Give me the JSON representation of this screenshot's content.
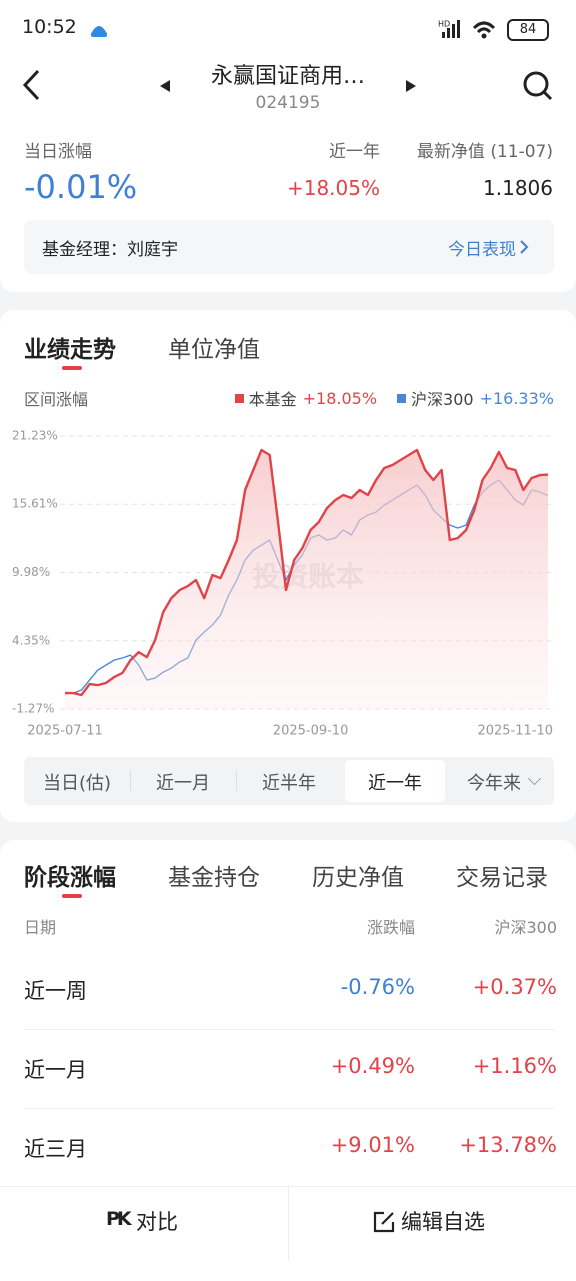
{
  "status_bar": {
    "time": "10:52",
    "battery": "84"
  },
  "header": {
    "title": "永赢国证商用…",
    "code": "024195"
  },
  "summary": {
    "daily_label": "当日涨幅",
    "daily_value": "-0.01%",
    "year_label": "近一年",
    "year_value": "+18.05%",
    "nav_label": "最新净值 (11-07)",
    "nav_value": "1.1806"
  },
  "manager": {
    "label": "基金经理：刘庭宇",
    "link": "今日表现"
  },
  "chart_tabs": [
    "业绩走势",
    "单位净值"
  ],
  "chart": {
    "type": "line",
    "subtitle": "区间涨幅",
    "watermark": "投资账本",
    "series": [
      {
        "name": "本基金",
        "legend_value": "+18.05%",
        "color": "#e24349",
        "values": [
          0.04,
          0.04,
          -0.12,
          0.78,
          0.7,
          0.87,
          1.36,
          1.69,
          2.76,
          3.42,
          3.01,
          4.41,
          6.72,
          7.87,
          8.53,
          8.86,
          9.36,
          7.87,
          9.77,
          9.52,
          11.01,
          12.66,
          16.78,
          18.43,
          20.08,
          19.66,
          14.31,
          8.53,
          11.01,
          12.0,
          13.48,
          14.14,
          15.29,
          15.95,
          16.37,
          16.12,
          16.78,
          16.37,
          17.6,
          18.59,
          18.84,
          19.25,
          19.66,
          20.08,
          18.43,
          17.6,
          18.43,
          12.66,
          12.82,
          13.48,
          15.13,
          17.6,
          18.59,
          19.91,
          18.59,
          18.43,
          16.78,
          17.77,
          18.01,
          18.05
        ]
      },
      {
        "name": "沪深300",
        "legend_value": "+16.33%",
        "color": "#4a86d8",
        "values": [
          0.04,
          0.04,
          0.29,
          1.11,
          1.94,
          2.35,
          2.76,
          2.93,
          3.17,
          2.35,
          1.11,
          1.28,
          1.77,
          2.1,
          2.6,
          2.93,
          4.41,
          5.07,
          5.65,
          6.47,
          8.12,
          9.36,
          11.01,
          11.83,
          12.24,
          12.66,
          11.01,
          9.36,
          10.6,
          11.42,
          12.82,
          13.07,
          12.66,
          12.82,
          13.48,
          13.07,
          14.31,
          14.72,
          14.96,
          15.54,
          15.95,
          16.37,
          16.78,
          17.19,
          16.37,
          15.13,
          14.47,
          13.89,
          13.65,
          13.89,
          15.54,
          16.61,
          17.19,
          17.6,
          16.78,
          15.95,
          15.54,
          16.78,
          16.61,
          16.33
        ]
      }
    ],
    "categories": [
      "2025-07-11",
      null,
      null,
      null,
      null,
      null,
      null,
      null,
      null,
      null,
      null,
      null,
      null,
      null,
      null,
      null,
      null,
      null,
      null,
      null,
      null,
      null,
      null,
      null,
      null,
      null,
      null,
      null,
      null,
      null,
      "2025-09-10",
      null,
      null,
      null,
      null,
      null,
      null,
      null,
      null,
      null,
      null,
      null,
      null,
      null,
      null,
      null,
      null,
      null,
      null,
      null,
      null,
      null,
      null,
      null,
      null,
      "2025-11-10",
      null,
      null,
      null,
      null
    ],
    "ylim": [
      -1.27,
      21.23
    ],
    "yticks": [
      {
        "value": 21.23,
        "label": "21.23%"
      },
      {
        "value": 15.61,
        "label": "15.61%"
      },
      {
        "value": 9.98,
        "label": "9.98%"
      },
      {
        "value": 4.35,
        "label": "4.35%"
      },
      {
        "value": -1.27,
        "label": "-1.27%"
      }
    ],
    "grid": true
  },
  "ranges": [
    "当日(估)",
    "近一月",
    "近半年",
    "近一年",
    "今年来"
  ],
  "active_range": 3,
  "tabs": [
    "阶段涨幅",
    "基金持仓",
    "历史净值",
    "交易记录"
  ],
  "table": {
    "header": [
      "日期",
      "涨跌幅",
      "沪深300"
    ],
    "rows": [
      [
        "近一周",
        "-0.76%",
        "+0.37%"
      ],
      [
        "近一月",
        "+0.49%",
        "+1.16%"
      ],
      [
        "近三月",
        "+9.01%",
        "+13.78%"
      ]
    ]
  },
  "bottom_bar": {
    "pk_icon": "PK",
    "compare": "对比",
    "edit": "编辑自选"
  }
}
